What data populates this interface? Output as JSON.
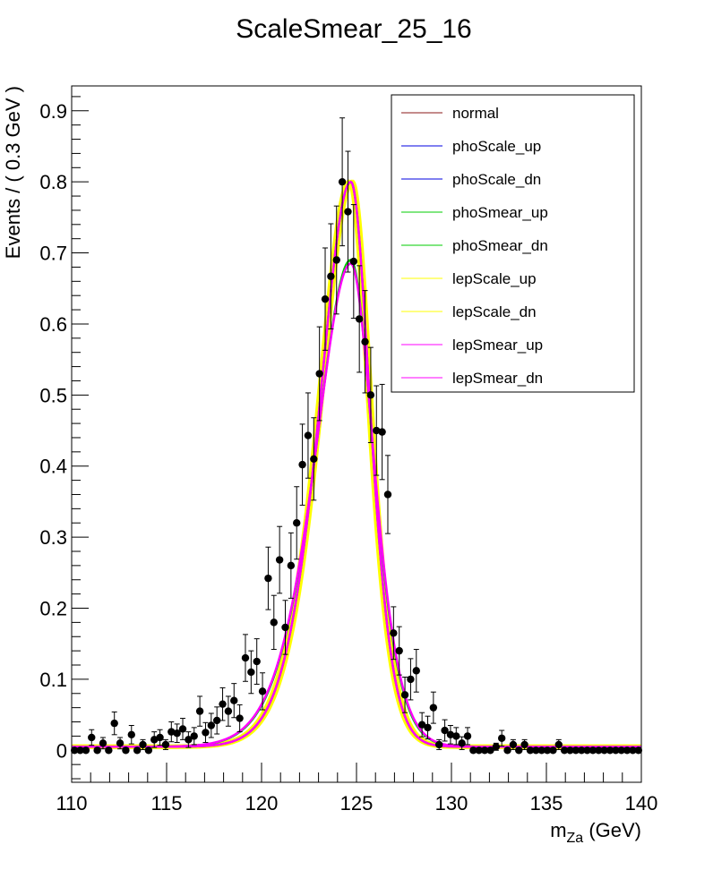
{
  "chart_data": {
    "type": "scatter",
    "title": "ScaleSmear_25_16",
    "xlabel_main": "m",
    "xlabel_sub": "Za",
    "xlabel_unit": " (GeV)",
    "ylabel": "Events / ( 0.3 GeV )",
    "xlim": [
      110,
      140
    ],
    "ylim": [
      -0.045,
      0.935
    ],
    "x_ticks": [
      "110",
      "115",
      "120",
      "125",
      "130",
      "135",
      "140"
    ],
    "y_ticks": [
      "0",
      "0.1",
      "0.2",
      "0.3",
      "0.4",
      "0.5",
      "0.6",
      "0.7",
      "0.8",
      "0.9"
    ],
    "grid": false,
    "legend_position": "top-right",
    "points": {
      "x": [
        110.15,
        110.45,
        110.75,
        111.05,
        111.35,
        111.65,
        111.95,
        112.25,
        112.55,
        112.85,
        113.15,
        113.45,
        113.75,
        114.05,
        114.35,
        114.65,
        114.95,
        115.25,
        115.55,
        115.85,
        116.15,
        116.45,
        116.75,
        117.05,
        117.35,
        117.65,
        117.95,
        118.25,
        118.55,
        118.85,
        119.15,
        119.45,
        119.75,
        120.05,
        120.35,
        120.65,
        120.95,
        121.25,
        121.55,
        121.85,
        122.15,
        122.45,
        122.75,
        123.05,
        123.35,
        123.65,
        123.95,
        124.25,
        124.55,
        124.85,
        125.15,
        125.45,
        125.75,
        126.05,
        126.35,
        126.65,
        126.95,
        127.25,
        127.55,
        127.85,
        128.15,
        128.45,
        128.75,
        129.05,
        129.35,
        129.65,
        129.95,
        130.25,
        130.55,
        130.85,
        131.15,
        131.45,
        131.75,
        132.05,
        132.35,
        132.65,
        132.95,
        133.25,
        133.55,
        133.85,
        134.15,
        134.45,
        134.75,
        135.05,
        135.35,
        135.65,
        135.95,
        136.25,
        136.55,
        136.85,
        137.15,
        137.45,
        137.75,
        138.05,
        138.35,
        138.65,
        138.95,
        139.25,
        139.55,
        139.85
      ],
      "y": [
        0,
        0,
        0,
        0.018,
        0,
        0.01,
        0,
        0.038,
        0.01,
        0,
        0.022,
        0,
        0.008,
        0,
        0.015,
        0.018,
        0.008,
        0.026,
        0.024,
        0.03,
        0.015,
        0.02,
        0.055,
        0.025,
        0.035,
        0.042,
        0.065,
        0.055,
        0.07,
        0.045,
        0.13,
        0.11,
        0.125,
        0.083,
        0.242,
        0.18,
        0.268,
        0.173,
        0.26,
        0.32,
        0.402,
        0.443,
        0.41,
        0.53,
        0.635,
        0.667,
        0.69,
        0.8,
        0.758,
        0.688,
        0.607,
        0.575,
        0.5,
        0.45,
        0.448,
        0.36,
        0.165,
        0.14,
        0.078,
        0.1,
        0.112,
        0.036,
        0.032,
        0.06,
        0.008,
        0.028,
        0.022,
        0.02,
        0.01,
        0.02,
        0,
        0,
        0,
        0,
        0.005,
        0.017,
        0,
        0.008,
        0,
        0.008,
        0,
        0,
        0,
        0,
        0,
        0.008,
        0,
        0,
        0,
        0,
        0,
        0,
        0,
        0,
        0,
        0,
        0,
        0,
        0,
        0
      ],
      "err": [
        0,
        0,
        0,
        0.011,
        0,
        0.008,
        0,
        0.016,
        0.008,
        0,
        0.013,
        0,
        0.007,
        0,
        0.011,
        0.011,
        0.007,
        0.014,
        0.013,
        0.015,
        0.011,
        0.012,
        0.021,
        0.014,
        0.017,
        0.019,
        0.023,
        0.021,
        0.024,
        0.019,
        0.033,
        0.03,
        0.032,
        0.026,
        0.044,
        0.038,
        0.047,
        0.038,
        0.046,
        0.051,
        0.057,
        0.06,
        0.058,
        0.066,
        0.072,
        0.074,
        0.076,
        0.09,
        0.085,
        0.08,
        0.075,
        0.072,
        0.067,
        0.063,
        0.067,
        0.055,
        0.037,
        0.034,
        0.025,
        0.029,
        0.03,
        0.017,
        0.016,
        0.022,
        0.007,
        0.015,
        0.013,
        0.012,
        0.009,
        0.012,
        0,
        0,
        0,
        0,
        0.005,
        0.011,
        0,
        0.007,
        0,
        0.007,
        0,
        0,
        0,
        0,
        0,
        0.007,
        0,
        0,
        0,
        0,
        0,
        0,
        0,
        0,
        0,
        0,
        0,
        0,
        0,
        0
      ]
    },
    "series": [
      {
        "name": "normal",
        "color": "#8b1a1a",
        "peak": 0.8,
        "mu": 124.7,
        "sigmaL": 1.95,
        "sigmaR": 1.2
      },
      {
        "name": "phoScale_up",
        "color": "#0000e0",
        "peak": 0.8,
        "mu": 124.7,
        "sigmaL": 1.95,
        "sigmaR": 1.2
      },
      {
        "name": "phoScale_dn",
        "color": "#0000e0",
        "peak": 0.8,
        "mu": 124.7,
        "sigmaL": 1.95,
        "sigmaR": 1.2
      },
      {
        "name": "phoSmear_up",
        "color": "#00cc00",
        "peak": 0.69,
        "mu": 124.7,
        "sigmaL": 2.2,
        "sigmaR": 1.4
      },
      {
        "name": "phoSmear_dn",
        "color": "#00cc00",
        "peak": 0.8,
        "mu": 124.7,
        "sigmaL": 1.95,
        "sigmaR": 1.2
      },
      {
        "name": "lepScale_up",
        "color": "#ffff00",
        "peak": 0.8,
        "mu": 124.78,
        "sigmaL": 1.95,
        "sigmaR": 1.2
      },
      {
        "name": "lepScale_dn",
        "color": "#ffff00",
        "peak": 0.8,
        "mu": 124.62,
        "sigmaL": 1.95,
        "sigmaR": 1.2
      },
      {
        "name": "lepSmear_up",
        "color": "#ff00ff",
        "peak": 0.685,
        "mu": 124.7,
        "sigmaL": 2.22,
        "sigmaR": 1.42
      },
      {
        "name": "lepSmear_dn",
        "color": "#ff00ff",
        "peak": 0.8,
        "mu": 124.7,
        "sigmaL": 1.95,
        "sigmaR": 1.2
      }
    ],
    "background": 0.005
  }
}
